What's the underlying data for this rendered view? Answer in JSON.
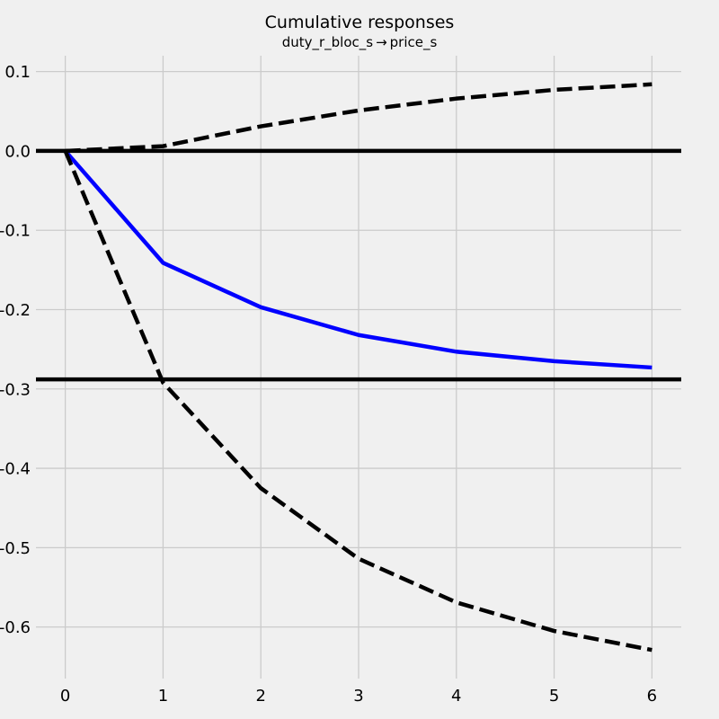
{
  "chart_data": {
    "type": "line",
    "title": "Cumulative responses",
    "subtitle": "duty_r_bloc_s → price_s",
    "xlabel": "",
    "ylabel": "",
    "x": [
      0,
      1,
      2,
      3,
      4,
      5,
      6
    ],
    "xlim": [
      -0.3,
      6.3
    ],
    "ylim": [
      -0.665,
      0.12
    ],
    "xticks": [
      "0",
      "1",
      "2",
      "3",
      "4",
      "5",
      "6"
    ],
    "yticks": [
      {
        "value": 0.1,
        "label": "0.1"
      },
      {
        "value": 0.0,
        "label": "0.0"
      },
      {
        "value": -0.1,
        "label": "-0.1"
      },
      {
        "value": -0.2,
        "label": "-0.2"
      },
      {
        "value": -0.3,
        "label": "-0.3"
      },
      {
        "value": -0.4,
        "label": "-0.4"
      },
      {
        "value": -0.5,
        "label": "-0.5"
      },
      {
        "value": -0.6,
        "label": "-0.6"
      }
    ],
    "grid": true,
    "series": [
      {
        "style": "solid",
        "color": "#0000ff",
        "values": [
          0.0,
          -0.141,
          -0.197,
          -0.232,
          -0.253,
          -0.265,
          -0.273
        ]
      },
      {
        "style": "dashed",
        "color": "#000000",
        "values": [
          0.0,
          0.006,
          0.031,
          0.051,
          0.066,
          0.077,
          0.084
        ]
      },
      {
        "style": "dashed",
        "color": "#000000",
        "values": [
          0.0,
          -0.292,
          -0.425,
          -0.514,
          -0.569,
          -0.605,
          -0.629
        ]
      }
    ],
    "hlines": [
      {
        "value": 0.0,
        "color": "#000000"
      },
      {
        "value": -0.288,
        "color": "#000000"
      }
    ]
  }
}
